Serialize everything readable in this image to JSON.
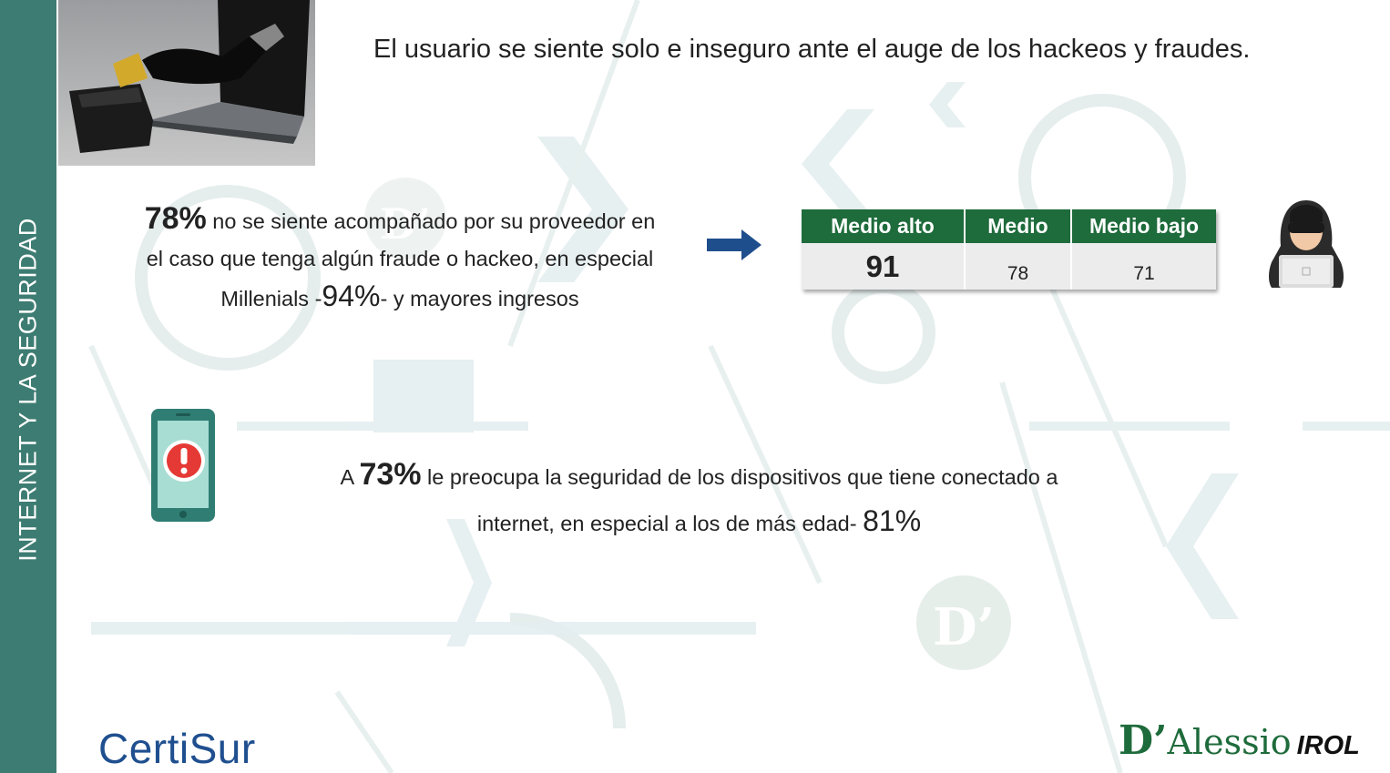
{
  "sidebar": {
    "title": "INTERNET Y LA SEGURIDAD"
  },
  "headline": "El usuario se siente solo e inseguro ante el auge de los hackeos y fraudes.",
  "stat1": {
    "pct": "78%",
    "line1": " no se siente acompañado por su proveedor en",
    "line2": "el caso que tenga algún fraude o hackeo, en especial",
    "line3_pre": "Millenials -",
    "pct2": "94%",
    "line3_post": "- y mayores ingresos"
  },
  "table": {
    "headers": [
      "Medio alto",
      "Medio",
      "Medio bajo"
    ],
    "values": [
      "91",
      "78",
      "71"
    ]
  },
  "stat2": {
    "pre": "A ",
    "pct": "73%",
    "line1": " le preocupa la seguridad de los dispositivos que tiene conectado a",
    "line2": "internet, en especial a los de más edad- ",
    "pct2": "81%"
  },
  "logos": {
    "left": "CertiSur",
    "right_d": "D’",
    "right_name": "Alessio",
    "right_suffix": "IROL"
  },
  "colors": {
    "sidebar": "#3d7c72",
    "table_header": "#1e6b3b",
    "arrow": "#1f4e8c",
    "certisur": "#1f4f8f"
  }
}
